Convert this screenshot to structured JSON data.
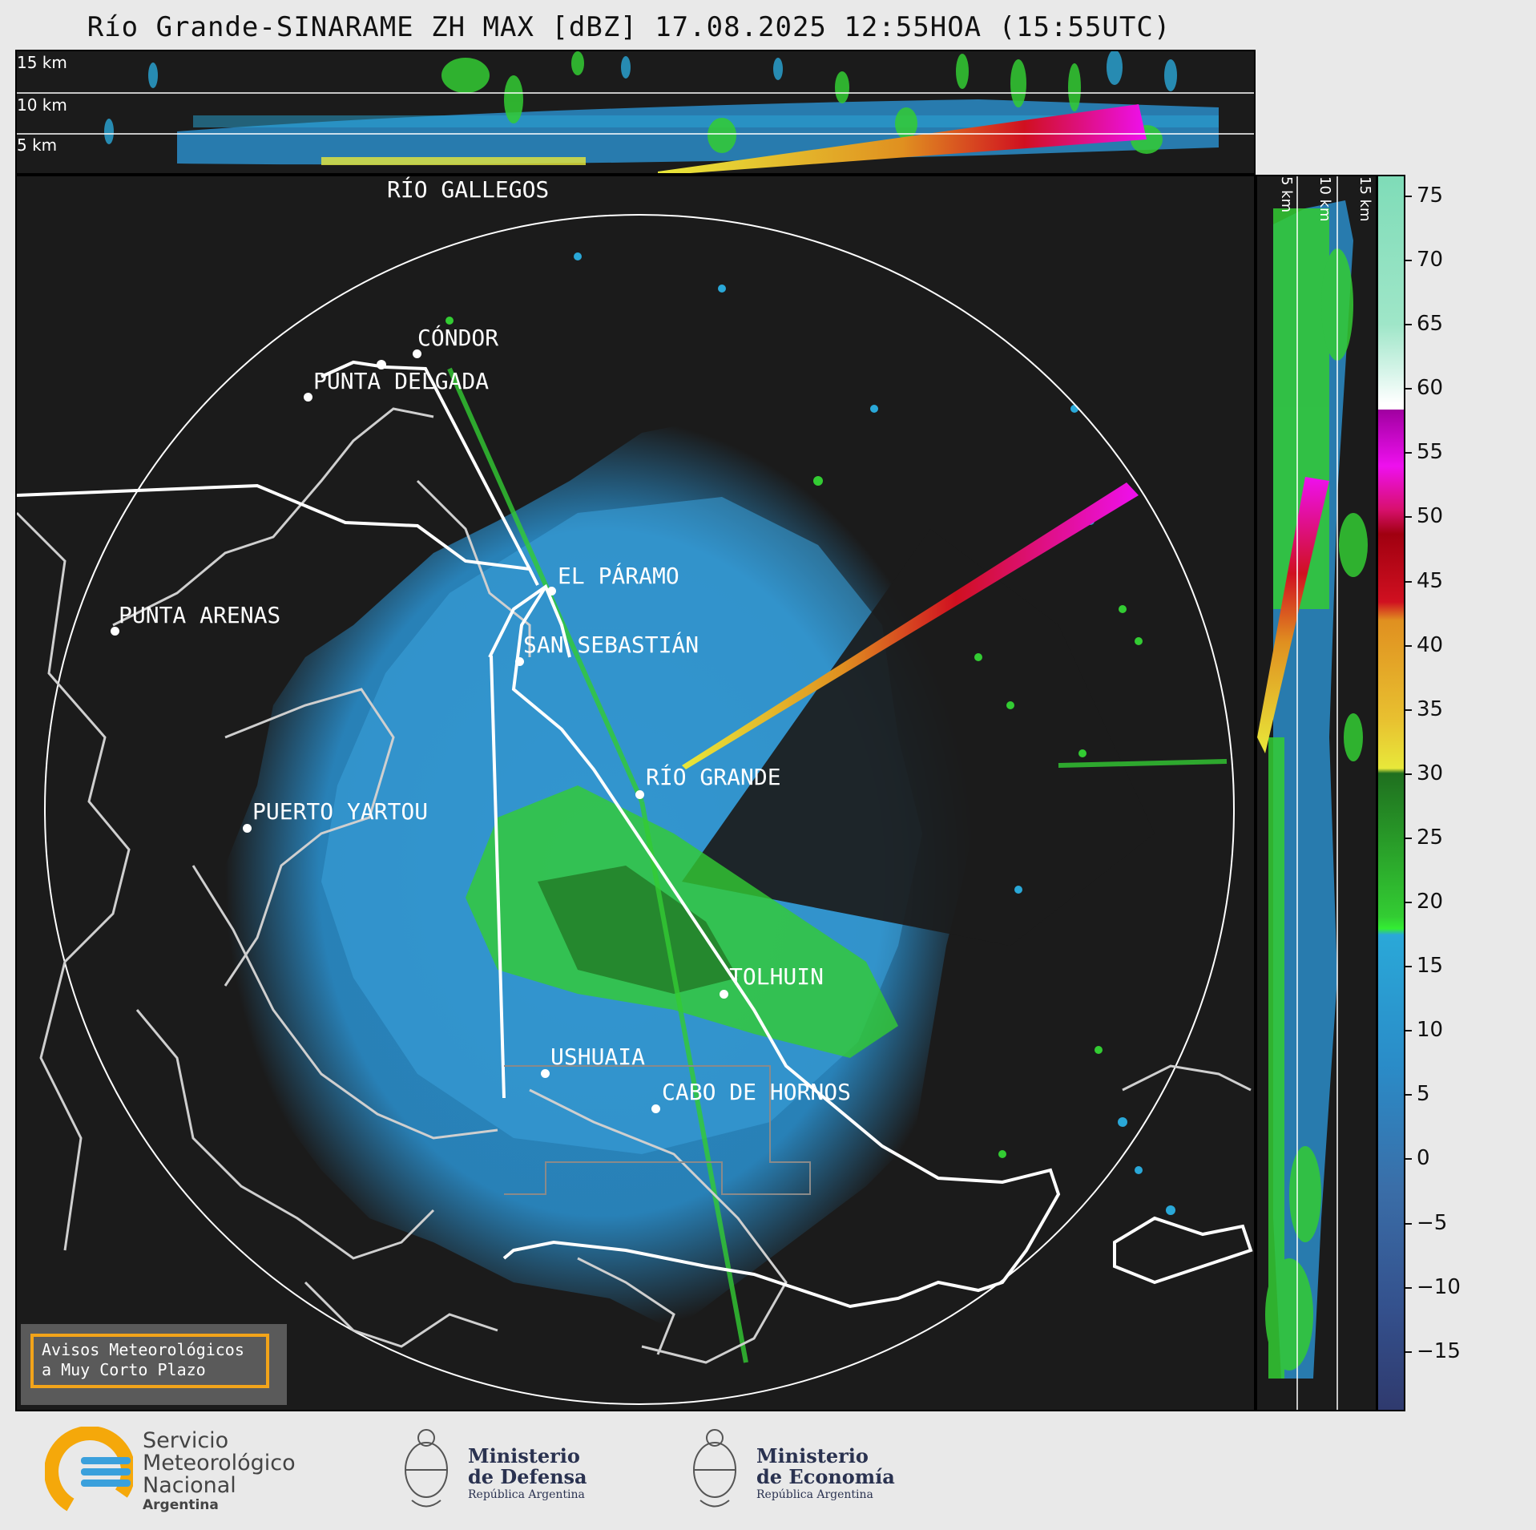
{
  "title": "Río Grande-SINARAME ZH MAX [dBZ] 17.08.2025 12:55HOA (15:55UTC)",
  "altitude_labels": {
    "km15": "15 km",
    "km10": "10 km",
    "km5": "5 km"
  },
  "cities": [
    {
      "name": "RÍO GALLEGOS"
    },
    {
      "name": "CÓNDOR"
    },
    {
      "name": "PUNTA DELGADA"
    },
    {
      "name": "EL PÁRAMO"
    },
    {
      "name": "PUNTA ARENAS"
    },
    {
      "name": "SAN SEBASTIÁN"
    },
    {
      "name": "RÍO GRANDE"
    },
    {
      "name": "PUERTO YARTOU"
    },
    {
      "name": "TOLHUIN"
    },
    {
      "name": "USHUAIA"
    },
    {
      "name": "CABO DE HORNOS"
    }
  ],
  "colorbar": {
    "ticks": [
      "75",
      "70",
      "65",
      "60",
      "55",
      "50",
      "45",
      "40",
      "35",
      "30",
      "25",
      "20",
      "15",
      "10",
      "5",
      "0",
      "−5",
      "−10",
      "−15"
    ],
    "colors": {
      "low": "#2f3a6e",
      "mid_low": "#3a6ea8",
      "blue": "#2aa8d8",
      "green": "#33cc33",
      "dark_green": "#1f6f1f",
      "yellow": "#e8e83a",
      "orange": "#e09020",
      "red": "#d01020",
      "magenta": "#ee10ee",
      "white": "#ffffff",
      "mint": "#7fdcb8"
    }
  },
  "warning_box": {
    "line1": "Avisos Meteorológicos",
    "line2": "a Muy Corto Plazo"
  },
  "logos": {
    "smn": {
      "line1": "Servicio",
      "line2": "Meteorológico",
      "line3": "Nacional",
      "line4": "Argentina"
    },
    "defensa": {
      "line1": "Ministerio",
      "line2": "de Defensa",
      "line3": "República Argentina"
    },
    "economia": {
      "line1": "Ministerio",
      "line2": "de Economía",
      "line3": "República Argentina"
    }
  }
}
